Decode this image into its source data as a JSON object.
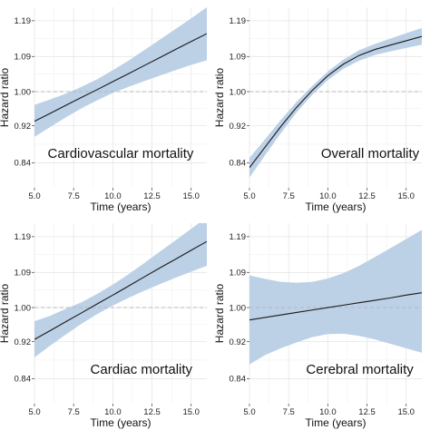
{
  "chart_data": [
    {
      "type": "line",
      "title": "Cardiovascular mortality",
      "xlabel": "Time (years)",
      "ylabel": "Hazard ratio",
      "xlim": [
        5.0,
        16.0
      ],
      "ylim": [
        0.79,
        1.23
      ],
      "xticks": [
        5.0,
        7.5,
        10.0,
        12.5,
        15.0
      ],
      "xtick_labels": [
        "5.0",
        "7.5",
        "10.0",
        "12.5",
        "15.0"
      ],
      "yticks": [
        0.84,
        0.92,
        1.0,
        1.09,
        1.19
      ],
      "ytick_labels": [
        "0.84",
        "0.92",
        "1.00",
        "1.09",
        "1.19"
      ],
      "reference_line": 1.0,
      "grid": true,
      "log_scale_y": true,
      "colors": {
        "line": "#1a1a1a",
        "band": "#bcd0e6",
        "reference": "#b8b8b8"
      },
      "series": [
        {
          "x": [
            5,
            6,
            7,
            8,
            9,
            10,
            11,
            12,
            13,
            14,
            15,
            16
          ],
          "y": [
            0.93,
            0.948,
            0.967,
            0.986,
            1.005,
            1.025,
            1.045,
            1.066,
            1.087,
            1.109,
            1.131,
            1.153
          ],
          "lower": [
            0.895,
            0.917,
            0.939,
            0.96,
            0.979,
            0.997,
            1.012,
            1.026,
            1.04,
            1.054,
            1.068,
            1.08
          ],
          "upper": [
            0.968,
            0.981,
            0.995,
            1.012,
            1.031,
            1.054,
            1.079,
            1.107,
            1.136,
            1.166,
            1.197,
            1.23
          ]
        }
      ]
    },
    {
      "type": "line",
      "title": "Overall mortality",
      "xlabel": "Time (years)",
      "ylabel": "Hazard ratio",
      "xlim": [
        5.0,
        16.0
      ],
      "ylim": [
        0.79,
        1.23
      ],
      "xticks": [
        5.0,
        7.5,
        10.0,
        12.5,
        15.0
      ],
      "xtick_labels": [
        "5.0",
        "7.5",
        "10.0",
        "12.5",
        "15.0"
      ],
      "yticks": [
        0.84,
        0.92,
        1.0,
        1.09,
        1.19
      ],
      "ytick_labels": [
        "0.84",
        "0.92",
        "1.00",
        "1.09",
        "1.19"
      ],
      "reference_line": 1.0,
      "grid": true,
      "log_scale_y": true,
      "colors": {
        "line": "#1a1a1a",
        "band": "#bcd0e6",
        "reference": "#b8b8b8"
      },
      "series": [
        {
          "x": [
            5,
            6,
            7,
            8,
            9,
            10,
            11,
            12,
            13,
            14,
            15,
            16
          ],
          "y": [
            0.83,
            0.873,
            0.918,
            0.962,
            1.003,
            1.04,
            1.07,
            1.093,
            1.109,
            1.121,
            1.133,
            1.145
          ],
          "lower": [
            0.81,
            0.856,
            0.903,
            0.95,
            0.992,
            1.029,
            1.058,
            1.079,
            1.094,
            1.104,
            1.113,
            1.122
          ],
          "upper": [
            0.85,
            0.89,
            0.933,
            0.975,
            1.014,
            1.051,
            1.082,
            1.107,
            1.124,
            1.139,
            1.154,
            1.169
          ]
        }
      ]
    },
    {
      "type": "line",
      "title": "Cardiac mortality",
      "xlabel": "Time (years)",
      "ylabel": "Hazard ratio",
      "xlim": [
        5.0,
        16.0
      ],
      "ylim": [
        0.79,
        1.23
      ],
      "xticks": [
        5.0,
        7.5,
        10.0,
        12.5,
        15.0
      ],
      "xtick_labels": [
        "5.0",
        "7.5",
        "10.0",
        "12.5",
        "15.0"
      ],
      "yticks": [
        0.84,
        0.92,
        1.0,
        1.09,
        1.19
      ],
      "ytick_labels": [
        "0.84",
        "0.92",
        "1.00",
        "1.09",
        "1.19"
      ],
      "reference_line": 1.0,
      "grid": true,
      "log_scale_y": true,
      "colors": {
        "line": "#1a1a1a",
        "band": "#bcd0e6",
        "reference": "#b8b8b8"
      },
      "series": [
        {
          "x": [
            5,
            6,
            7,
            8,
            9,
            10,
            11,
            12,
            13,
            14,
            15,
            16
          ],
          "y": [
            0.925,
            0.945,
            0.966,
            0.987,
            1.009,
            1.031,
            1.054,
            1.078,
            1.102,
            1.126,
            1.151,
            1.176
          ],
          "lower": [
            0.885,
            0.911,
            0.936,
            0.961,
            0.984,
            1.005,
            1.024,
            1.042,
            1.059,
            1.076,
            1.092,
            1.108
          ],
          "upper": [
            0.967,
            0.98,
            0.997,
            1.013,
            1.034,
            1.058,
            1.085,
            1.115,
            1.147,
            1.179,
            1.213,
            1.248
          ]
        }
      ]
    },
    {
      "type": "line",
      "title": "Cerebral mortality",
      "xlabel": "Time (years)",
      "ylabel": "Hazard ratio",
      "xlim": [
        5.0,
        16.0
      ],
      "ylim": [
        0.79,
        1.23
      ],
      "xticks": [
        5.0,
        7.5,
        10.0,
        12.5,
        15.0
      ],
      "xtick_labels": [
        "5.0",
        "7.5",
        "10.0",
        "12.5",
        "15.0"
      ],
      "yticks": [
        0.84,
        0.92,
        1.0,
        1.09,
        1.19
      ],
      "ytick_labels": [
        "0.84",
        "0.92",
        "1.00",
        "1.09",
        "1.19"
      ],
      "reference_line": 1.0,
      "grid": true,
      "log_scale_y": true,
      "colors": {
        "line": "#1a1a1a",
        "band": "#bcd0e6",
        "reference": "#b8b8b8"
      },
      "series": [
        {
          "x": [
            5,
            6,
            7,
            8,
            9,
            10,
            11,
            12,
            13,
            14,
            15,
            16
          ],
          "y": [
            0.97,
            0.976,
            0.982,
            0.988,
            0.994,
            1.0,
            1.006,
            1.012,
            1.018,
            1.024,
            1.031,
            1.037
          ],
          "lower": [
            0.87,
            0.89,
            0.905,
            0.918,
            0.93,
            0.937,
            0.938,
            0.933,
            0.925,
            0.915,
            0.905,
            0.895
          ],
          "upper": [
            1.082,
            1.073,
            1.065,
            1.063,
            1.065,
            1.074,
            1.088,
            1.108,
            1.132,
            1.157,
            1.183,
            1.21
          ]
        }
      ]
    }
  ]
}
